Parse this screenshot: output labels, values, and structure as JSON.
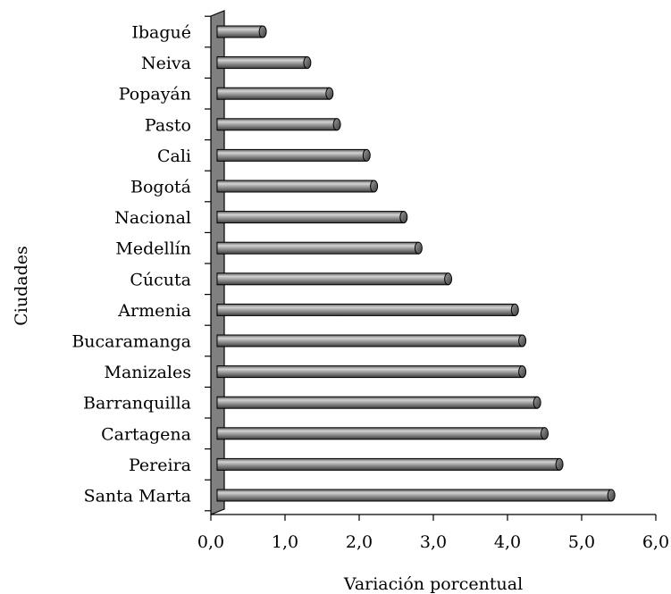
{
  "chart_data": {
    "type": "bar",
    "orientation": "horizontal",
    "style": "3d-cylinder",
    "categories": [
      "Ibagué",
      "Neiva",
      "Popayán",
      "Pasto",
      "Cali",
      "Bogotá",
      "Nacional",
      "Medellín",
      "Cúcuta",
      "Armenia",
      "Bucaramanga",
      "Manizales",
      "Barranquilla",
      "Cartagena",
      "Pereira",
      "Santa Marta"
    ],
    "values": [
      0.7,
      1.3,
      1.6,
      1.7,
      2.1,
      2.2,
      2.6,
      2.8,
      3.2,
      4.1,
      4.2,
      4.2,
      4.4,
      4.5,
      4.7,
      5.4
    ],
    "xlabel": "Variación porcentual",
    "ylabel": "Ciudades",
    "xlim": [
      0,
      6
    ],
    "xticks": [
      "0,0",
      "1,0",
      "2,0",
      "3,0",
      "4,0",
      "5,0",
      "6,0"
    ],
    "grid": false,
    "bar_color": "#7f7f7f",
    "wall_color": "#808080"
  }
}
